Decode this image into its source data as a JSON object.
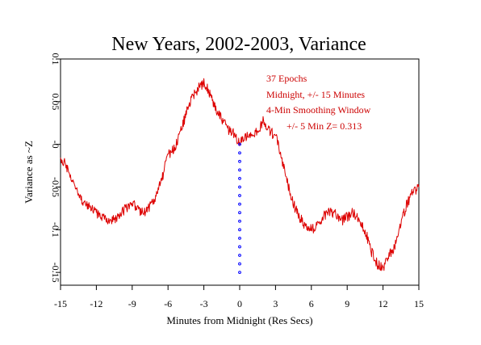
{
  "chart_data": {
    "type": "line",
    "title": "New Years, 2002-2003, Variance",
    "xlabel": "Minutes from Midnight (Res Secs)",
    "ylabel": "Variance as ~Z",
    "xlim": [
      -15,
      15
    ],
    "ylim": [
      -0.165,
      0.1
    ],
    "x_ticks": [
      -15,
      -12,
      -9,
      -6,
      -3,
      0,
      3,
      6,
      9,
      12,
      15
    ],
    "x_tick_labels": [
      "-15",
      "-12",
      "-9",
      "-6",
      "-3",
      "0",
      "3",
      "6",
      "9",
      "12",
      "15"
    ],
    "y_ticks": [
      0.1,
      0.05,
      0,
      -0.05,
      -0.1,
      -0.15
    ],
    "y_tick_labels": [
      "0.1",
      "0.05",
      "-0",
      "-0.05",
      "-0.1",
      "-0.15"
    ],
    "grid": false,
    "annotations": [
      "37 Epochs",
      "Midnight, +/- 15 Minutes",
      "4-Min Smoothing Window",
      "+/- 5 Min Z= 0.313"
    ],
    "line_color": "#dd0000",
    "marker_color": "#0000ff",
    "series": [
      {
        "x": [
          -15,
          -14.5,
          -14,
          -13.5,
          -13,
          -12.5,
          -12,
          -11.5,
          -11,
          -10.5,
          -10,
          -9.5,
          -9,
          -8.5,
          -8,
          -7.5,
          -7,
          -6.5,
          -6,
          -5.5,
          -5,
          -4.5,
          -4,
          -3.5,
          -3,
          -2.5,
          -2,
          -1.5,
          -1,
          -0.5,
          0,
          0.5,
          1,
          1.5,
          2,
          2.5,
          3,
          3.5,
          4,
          4.5,
          5,
          5.5,
          6,
          6.5,
          7,
          7.5,
          8,
          8.5,
          9,
          9.5,
          10,
          10.5,
          11,
          11.5,
          12,
          12.5,
          13,
          13.5,
          14,
          14.5,
          15
        ],
        "y": [
          -0.015,
          -0.025,
          -0.045,
          -0.06,
          -0.07,
          -0.075,
          -0.08,
          -0.085,
          -0.092,
          -0.088,
          -0.08,
          -0.075,
          -0.068,
          -0.078,
          -0.08,
          -0.072,
          -0.06,
          -0.04,
          -0.012,
          -0.005,
          0.012,
          0.035,
          0.055,
          0.065,
          0.072,
          0.06,
          0.04,
          0.03,
          0.018,
          0.012,
          0.002,
          0.008,
          0.01,
          0.015,
          0.028,
          0.015,
          0.01,
          -0.015,
          -0.045,
          -0.07,
          -0.085,
          -0.095,
          -0.1,
          -0.095,
          -0.085,
          -0.078,
          -0.082,
          -0.09,
          -0.085,
          -0.08,
          -0.09,
          -0.1,
          -0.125,
          -0.14,
          -0.145,
          -0.13,
          -0.12,
          -0.09,
          -0.07,
          -0.055,
          -0.05
        ]
      }
    ],
    "markers": {
      "x": 0,
      "y": [
        0,
        -0.01,
        -0.02,
        -0.03,
        -0.04,
        -0.05,
        -0.06,
        -0.07,
        -0.08,
        -0.09,
        -0.1,
        -0.11,
        -0.12,
        -0.13,
        -0.14,
        -0.15
      ]
    }
  }
}
